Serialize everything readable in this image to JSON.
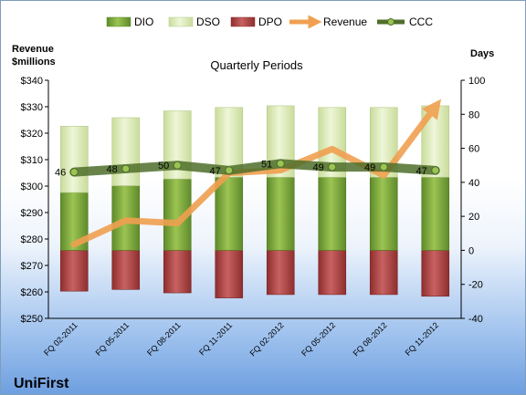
{
  "chart_data": {
    "type": "bar",
    "title": "Quarterly Periods",
    "company": "UniFirst",
    "left_axis": {
      "label_line1": "Revenue",
      "label_line2": "$millions",
      "min": 250,
      "max": 340,
      "step": 10,
      "prefix": "$"
    },
    "right_axis": {
      "label": "Days",
      "min": -40,
      "max": 100,
      "step": 20
    },
    "categories": [
      "FQ 02-2011",
      "FQ 05-2011",
      "FQ 08-2011",
      "FQ 11-2011",
      "FQ 02-2012",
      "FQ 05-2012",
      "FQ 08-2012",
      "FQ 11-2012"
    ],
    "series": [
      {
        "name": "DIO",
        "type": "stacked-bar",
        "axis": "right",
        "color": "#7aa23a",
        "values": [
          34,
          38,
          42,
          43,
          43,
          43,
          43,
          43
        ]
      },
      {
        "name": "DSO",
        "type": "stacked-bar",
        "axis": "right",
        "color": "#d8e8b0",
        "values": [
          39,
          40,
          40,
          41,
          42,
          41,
          41,
          42
        ]
      },
      {
        "name": "DPO",
        "type": "bar-negative",
        "axis": "right",
        "color": "#b84a4a",
        "values": [
          -24,
          -23,
          -25,
          -28,
          -26,
          -26,
          -26,
          -27
        ]
      },
      {
        "name": "Revenue",
        "type": "line",
        "axis": "left",
        "color": "#f0a050",
        "values": [
          278,
          287,
          286,
          305,
          306,
          314,
          304,
          330
        ]
      },
      {
        "name": "CCC",
        "type": "line",
        "axis": "right",
        "color": "#4f6e2a",
        "values": [
          46,
          48,
          50,
          47,
          51,
          49,
          49,
          47
        ],
        "labels": [
          "46",
          "48",
          "50",
          "47",
          "51",
          "49",
          "49",
          "47"
        ]
      }
    ],
    "legend": [
      "DIO",
      "DSO",
      "DPO",
      "Revenue",
      "CCC"
    ],
    "legend_position": "top",
    "grid": false
  }
}
